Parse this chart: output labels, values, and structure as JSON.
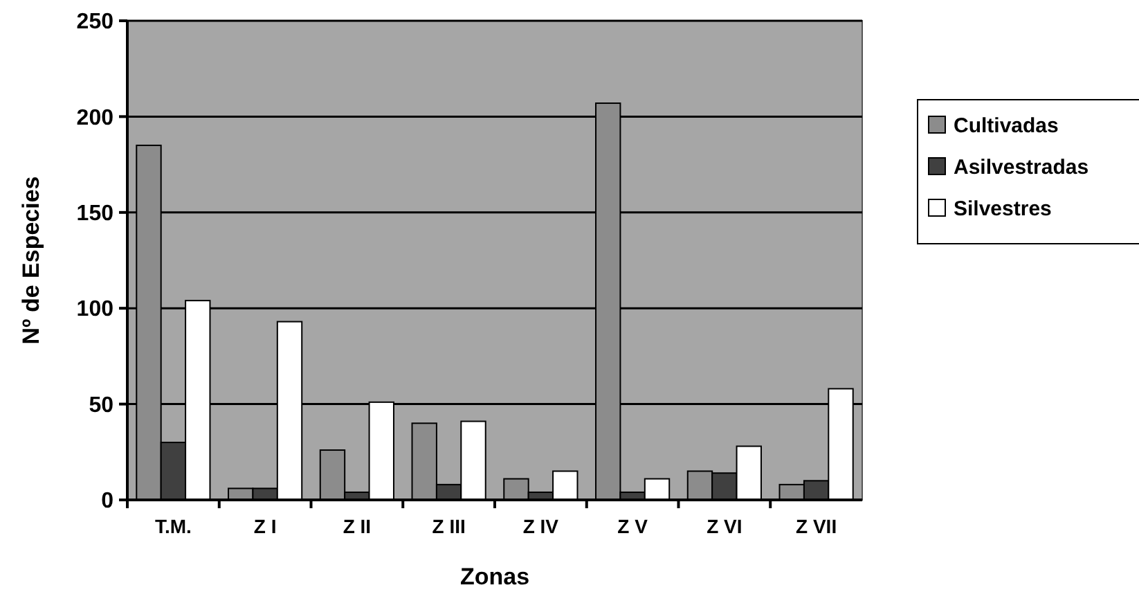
{
  "chart_data": {
    "type": "bar",
    "xlabel": "Zonas",
    "ylabel": "Nº de Especies",
    "categories": [
      "T.M.",
      "Z I",
      "Z II",
      "Z III",
      "Z IV",
      "Z V",
      "Z VI",
      "Z VII"
    ],
    "series": [
      {
        "name": "Cultivadas",
        "color": "#8c8c8c",
        "values": [
          185,
          6,
          26,
          40,
          11,
          207,
          15,
          8
        ]
      },
      {
        "name": "Asilvestradas",
        "color": "#404040",
        "values": [
          30,
          6,
          4,
          8,
          4,
          4,
          14,
          10
        ]
      },
      {
        "name": "Silvestres",
        "color": "#ffffff",
        "values": [
          104,
          93,
          51,
          41,
          15,
          11,
          28,
          58
        ]
      }
    ],
    "ylim": [
      0,
      250
    ],
    "yticks": [
      0,
      50,
      100,
      150,
      200,
      250
    ],
    "grid": "y",
    "legend": "right"
  }
}
